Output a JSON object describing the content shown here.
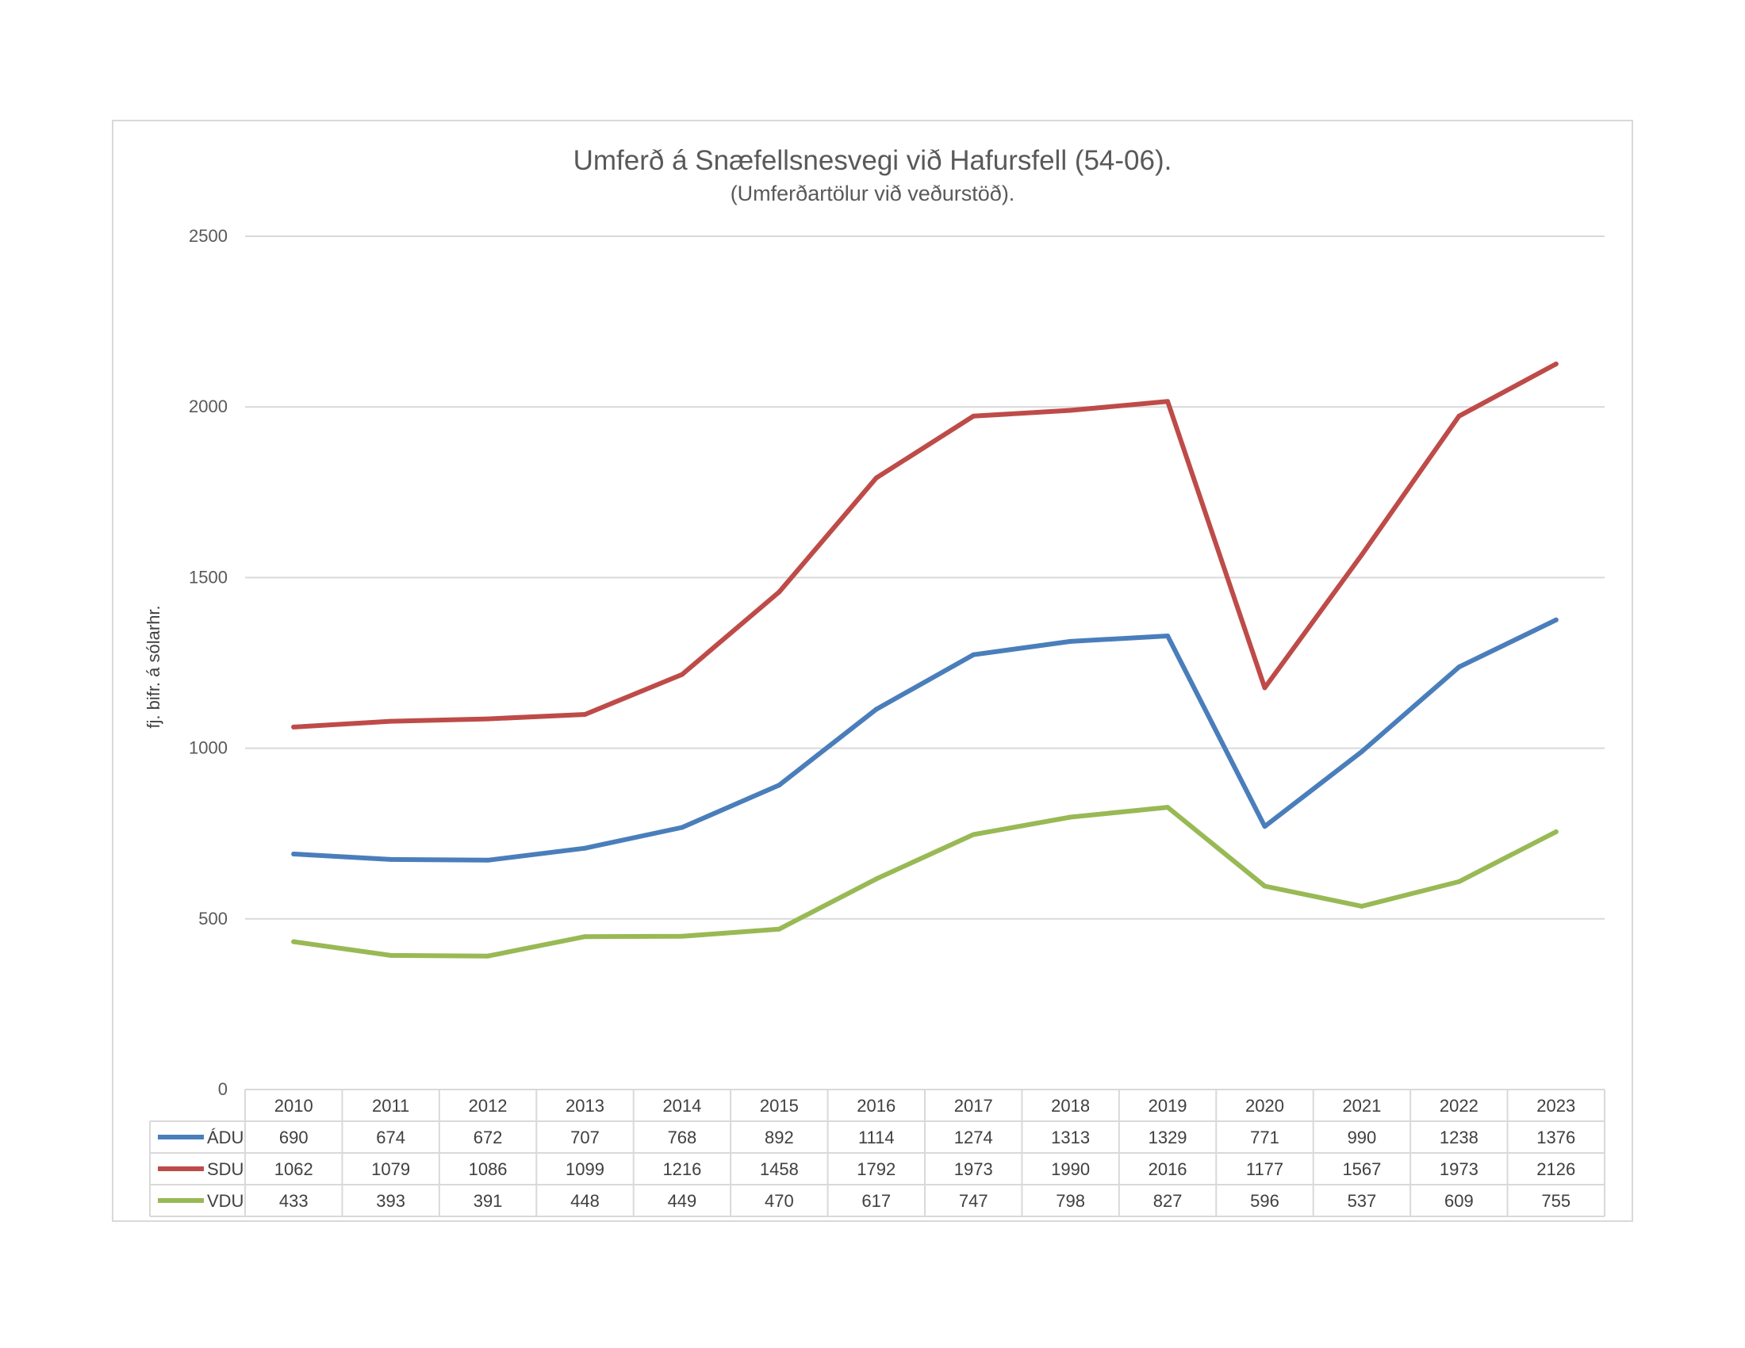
{
  "chart_data": {
    "type": "line",
    "title": "Umferð á Snæfellsnesvegi við Hafursfell (54-06).",
    "subtitle": "(Umferðartölur við veðurstöð).",
    "ylabel": "fj. bifr. á sólarhr.",
    "xlabel": "",
    "ylim": [
      0,
      2500
    ],
    "yticks": [
      "0",
      "500",
      "1000",
      "1500",
      "2000",
      "2500"
    ],
    "grid": true,
    "legend": "data-table",
    "categories": [
      "2010",
      "2011",
      "2012",
      "2013",
      "2014",
      "2015",
      "2016",
      "2017",
      "2018",
      "2019",
      "2020",
      "2021",
      "2022",
      "2023"
    ],
    "series": [
      {
        "name": "ÁDU",
        "color": "#4a7ebb",
        "values": [
          690,
          674,
          672,
          707,
          768,
          892,
          1114,
          1274,
          1313,
          1329,
          771,
          990,
          1238,
          1376
        ]
      },
      {
        "name": "SDU",
        "color": "#be4b48",
        "values": [
          1062,
          1079,
          1086,
          1099,
          1216,
          1458,
          1792,
          1973,
          1990,
          2016,
          1177,
          1567,
          1973,
          2126
        ]
      },
      {
        "name": "VDU",
        "color": "#98b954",
        "values": [
          433,
          393,
          391,
          448,
          449,
          470,
          617,
          747,
          798,
          827,
          596,
          537,
          609,
          755
        ]
      }
    ]
  }
}
